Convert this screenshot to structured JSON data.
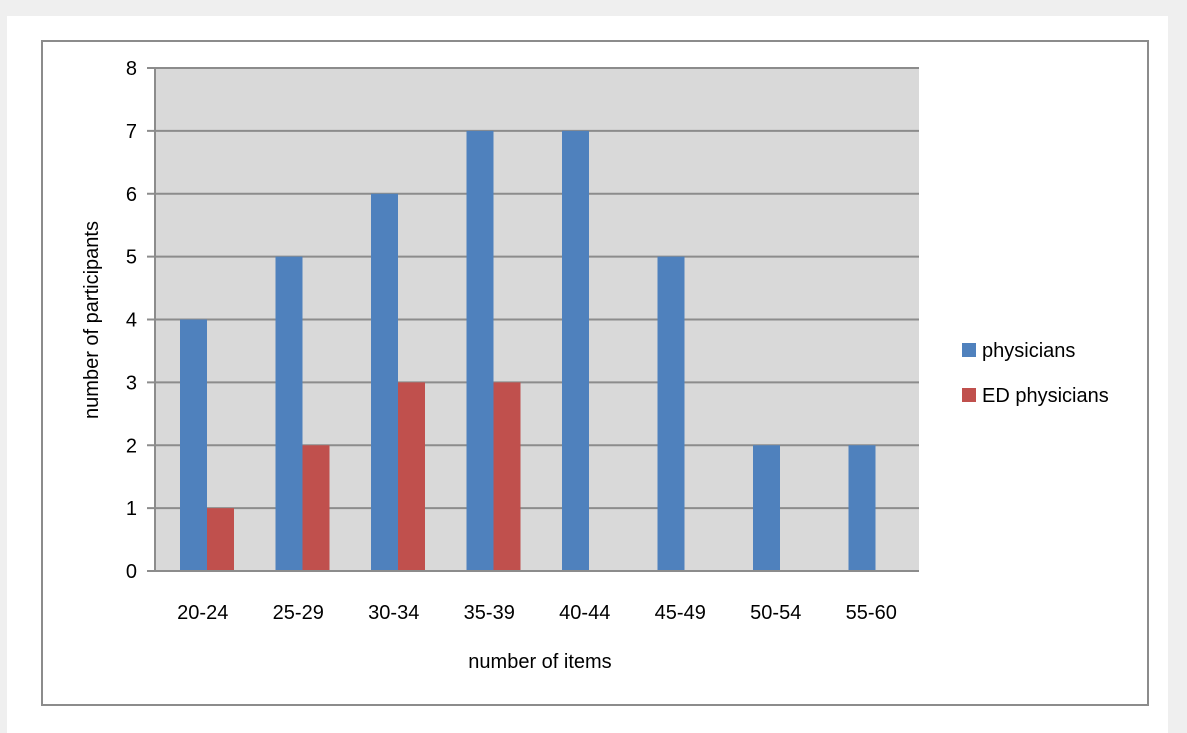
{
  "chart_data": {
    "type": "bar",
    "title": "",
    "xlabel": "number of items",
    "ylabel": "number of participants",
    "categories": [
      "20-24",
      "25-29",
      "30-34",
      "35-39",
      "40-44",
      "45-49",
      "50-54",
      "55-60"
    ],
    "series": [
      {
        "name": "physicians",
        "color": "#4f81bd",
        "values": [
          4,
          5,
          6,
          7,
          7,
          5,
          2,
          2
        ]
      },
      {
        "name": "ED physicians",
        "color": "#c0504d",
        "values": [
          1,
          2,
          3,
          3,
          0,
          0,
          0,
          0
        ]
      }
    ],
    "ylim": [
      0,
      8
    ],
    "yticks": [
      0,
      1,
      2,
      3,
      4,
      5,
      6,
      7,
      8
    ],
    "grid": true,
    "legend": "right",
    "plot_background": "#d9d9d9"
  }
}
